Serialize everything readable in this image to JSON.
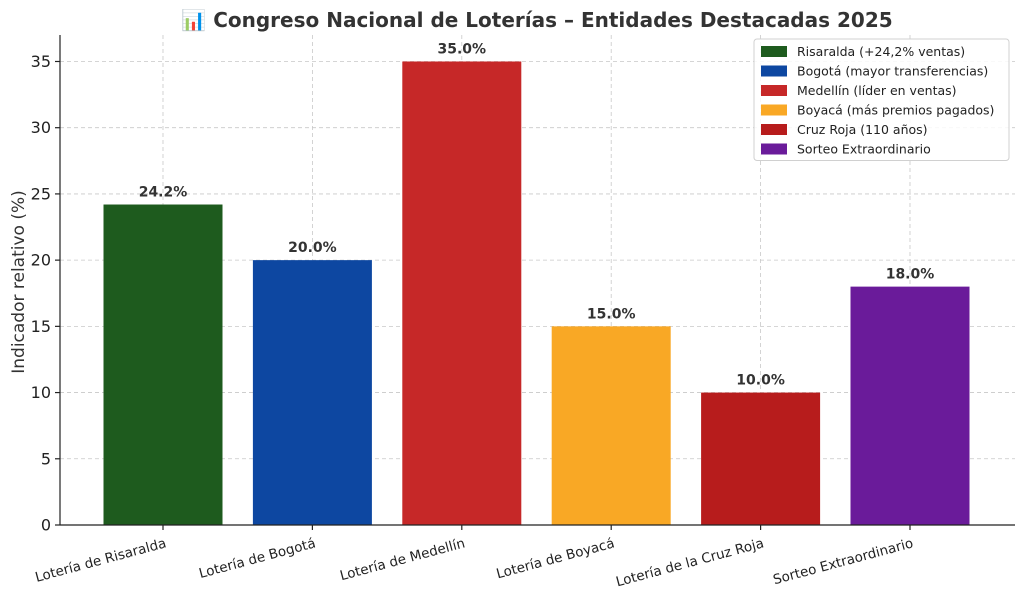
{
  "chart_data": {
    "type": "bar",
    "title": "📊 Congreso Nacional de Loterías – Entidades Destacadas 2025",
    "xlabel": "",
    "ylabel": "Indicador relativo (%)",
    "ylim": [
      0,
      37
    ],
    "yticks": [
      0,
      5,
      10,
      15,
      20,
      25,
      30,
      35
    ],
    "grid": true,
    "legend_position": "top-right",
    "categories": [
      "Lotería de Risaralda",
      "Lotería de Bogotá",
      "Lotería de Medellín",
      "Lotería de Boyacá",
      "Lotería de la Cruz Roja",
      "Sorteo Extraordinario"
    ],
    "values": [
      24.2,
      20.0,
      35.0,
      15.0,
      10.0,
      18.0
    ],
    "data_labels": [
      "24.2%",
      "20.0%",
      "35.0%",
      "15.0%",
      "10.0%",
      "18.0%"
    ],
    "colors": [
      "#1e5b1e",
      "#0d47a1",
      "#c62828",
      "#f9a825",
      "#b71c1c",
      "#6a1b9a"
    ],
    "legend": [
      "Risaralda (+24,2% ventas)",
      "Bogotá (mayor transferencias)",
      "Medellín (líder en ventas)",
      "Boyacá (más premios pagados)",
      "Cruz Roja (110 años)",
      "Sorteo Extraordinario"
    ]
  }
}
